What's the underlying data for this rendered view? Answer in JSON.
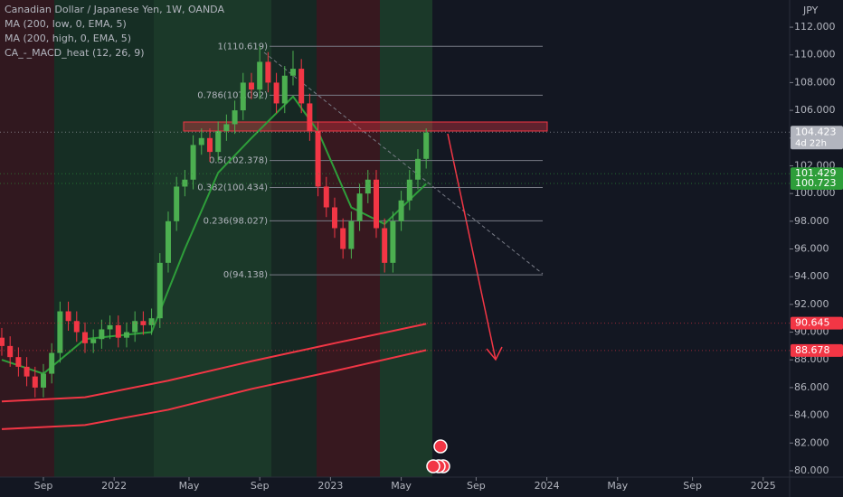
{
  "chart_data": {
    "type": "candlestick",
    "title": "Canadian Dollar / Japanese Yen, 1W, OANDA",
    "indicator": "CA_-_MACD_heat (12, 26, 9)",
    "currency": "JPY",
    "up_color": "#4caf50",
    "down_color": "#f23645",
    "x": [
      0,
      2,
      4,
      6,
      8,
      10,
      12,
      14,
      16,
      18,
      20,
      22,
      24,
      26,
      28,
      30,
      32,
      34,
      36,
      38,
      40,
      42,
      44,
      46,
      48,
      50,
      52,
      54,
      56,
      58,
      60,
      62,
      64,
      66,
      68,
      70,
      72,
      74,
      76,
      78,
      80,
      82,
      84,
      86,
      88,
      90,
      92,
      94,
      96,
      98,
      100,
      102
    ],
    "open": [
      89.6,
      89,
      88.2,
      87.5,
      86.8,
      86,
      87,
      88.5,
      91.5,
      90.8,
      90,
      89.2,
      89.5,
      90.2,
      90.5,
      89.6,
      90,
      90.8,
      90.5,
      91,
      95,
      98,
      100.5,
      101,
      103.5,
      104,
      103,
      104.5,
      105,
      106,
      108,
      107.5,
      109.5,
      108,
      106.5,
      108.5,
      109,
      106.5,
      104.5,
      100.5,
      99,
      97.5,
      96,
      98,
      100,
      101,
      97.5,
      95,
      98,
      99.5,
      101,
      102.5
    ],
    "high": [
      90.3,
      89.7,
      88.9,
      88.2,
      87.5,
      87.7,
      89.2,
      92.2,
      92.2,
      91.5,
      90.7,
      90.2,
      90.9,
      91.2,
      91.2,
      90.7,
      91.5,
      91.5,
      91.7,
      95.7,
      98.7,
      101.2,
      101.7,
      104.2,
      104.7,
      104.7,
      105.2,
      105.7,
      106.7,
      108.7,
      108.7,
      110.6,
      110.2,
      108.7,
      109.2,
      110.3,
      109.7,
      107.2,
      105.2,
      101.2,
      99.7,
      98.2,
      98.7,
      100.7,
      101.7,
      101.7,
      98.2,
      98.7,
      100.2,
      101.7,
      103.2,
      104.7
    ],
    "low": [
      88.3,
      87.5,
      86.8,
      86.1,
      85.3,
      85.3,
      86.3,
      87.8,
      90.1,
      89.3,
      88.5,
      88.5,
      88.8,
      89.5,
      88.9,
      88.9,
      89.3,
      89.8,
      89.8,
      90.3,
      94.3,
      97.3,
      99.8,
      100.3,
      102.8,
      102.3,
      102.3,
      103.8,
      104.3,
      105.3,
      106.8,
      106.8,
      107.3,
      105.8,
      105.8,
      107.8,
      105.8,
      103.8,
      99.8,
      98.3,
      96.8,
      95.3,
      95.3,
      97.3,
      99.3,
      96.8,
      94.3,
      94.3,
      97.3,
      98.8,
      100.3,
      101.8
    ],
    "close": [
      89,
      88.2,
      87.5,
      86.8,
      86,
      87,
      88.5,
      91.5,
      90.8,
      90,
      89.2,
      89.5,
      90.2,
      90.5,
      89.6,
      90,
      90.8,
      90.5,
      91,
      95,
      98,
      100.5,
      101,
      103.5,
      104,
      103,
      104.5,
      105,
      106,
      108,
      107.5,
      109.5,
      108,
      106.5,
      108.5,
      109,
      106.5,
      104.5,
      100.5,
      99,
      97.5,
      96,
      98,
      100,
      101,
      97.5,
      95,
      98,
      99.5,
      101,
      102.5,
      104.4
    ],
    "series": [
      {
        "name": "MA (200, low, 0, EMA, 5)",
        "color": "#f23645",
        "x": [
          0,
          20,
          40,
          60,
          80,
          102
        ],
        "values": [
          83,
          83.3,
          84.4,
          85.9,
          87.2,
          88.7
        ]
      },
      {
        "name": "MA (200, high, 0, EMA, 5)",
        "color": "#f23645",
        "x": [
          0,
          20,
          40,
          60,
          80,
          102
        ],
        "values": [
          85,
          85.3,
          86.5,
          87.9,
          89.2,
          90.6
        ]
      }
    ],
    "ema": {
      "color": "#2e9e3a",
      "x": [
        0,
        10,
        20,
        36,
        44,
        52,
        60,
        70,
        76,
        84,
        92,
        102
      ],
      "values": [
        88,
        87,
        89.5,
        90,
        96,
        101.5,
        104,
        107,
        104.5,
        99,
        97.8,
        100.7
      ]
    },
    "fib_levels": [
      {
        "value": 110.619,
        "label": "1(110.619)"
      },
      {
        "value": 107.092,
        "label": "0.786(107.092)"
      },
      {
        "value": 104.834,
        "label": null
      },
      {
        "value": 102.378,
        "label": "0.5(102.378)"
      },
      {
        "value": 100.434,
        "label": "0.382(100.434)"
      },
      {
        "value": 98.027,
        "label": "0.236(98.027)"
      },
      {
        "value": 94.138,
        "label": "0(94.138)"
      }
    ],
    "price_labels": [
      {
        "value": 104.423,
        "label": "104.423",
        "note": "4d 22h",
        "color": "#b2b5be"
      },
      {
        "value": 101.429,
        "label": "101.429",
        "color": "#2e9e3a"
      },
      {
        "value": 100.723,
        "label": "100.723",
        "color": "#2e9e3a"
      },
      {
        "value": 90.645,
        "label": "90.645",
        "color": "#f23645"
      },
      {
        "value": 88.678,
        "label": "88.678",
        "color": "#f23645"
      }
    ],
    "xlim": [
      -0.43,
      189.35
    ],
    "ylim": [
      79.54,
      113.96
    ],
    "xticks": [
      {
        "value": 10,
        "label": "Sep"
      },
      {
        "value": 27,
        "label": "2022"
      },
      {
        "value": 45,
        "label": "May"
      },
      {
        "value": 62,
        "label": "Sep"
      },
      {
        "value": 79,
        "label": "2023"
      },
      {
        "value": 96,
        "label": "May"
      },
      {
        "value": 114,
        "label": "Sep"
      },
      {
        "value": 131,
        "label": "2024"
      },
      {
        "value": 148,
        "label": "May"
      },
      {
        "value": 166,
        "label": "Sep"
      },
      {
        "value": 183,
        "label": "2025"
      }
    ],
    "yticks": [
      {
        "value": 112,
        "label": "112.000"
      },
      {
        "value": 110,
        "label": "110.000"
      },
      {
        "value": 108,
        "label": "108.000"
      },
      {
        "value": 106,
        "label": "106.000"
      },
      {
        "value": 104,
        "label": "104.000"
      },
      {
        "value": 102,
        "label": "102.000"
      },
      {
        "value": 100,
        "label": "100.000"
      },
      {
        "value": 98,
        "label": "98.000"
      },
      {
        "value": 96,
        "label": "96.000"
      },
      {
        "value": 94,
        "label": "94.000"
      },
      {
        "value": 92,
        "label": "92.000"
      },
      {
        "value": 90,
        "label": "90.000"
      },
      {
        "value": 88,
        "label": "88.000"
      },
      {
        "value": 86,
        "label": "86.000"
      },
      {
        "value": 84,
        "label": "84.000"
      },
      {
        "value": 82,
        "label": "82.000"
      },
      {
        "value": 80,
        "label": "80.000"
      }
    ]
  }
}
